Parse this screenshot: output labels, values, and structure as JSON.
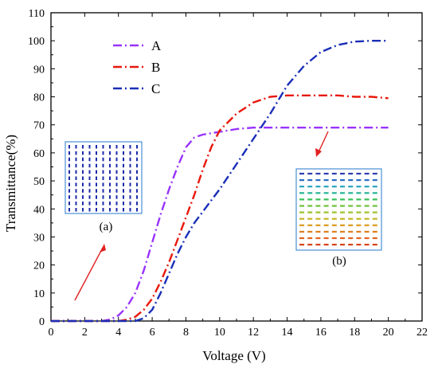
{
  "chart_data": {
    "type": "line",
    "title": "",
    "xlabel": "Voltage (V)",
    "ylabel": "Transmittance(%)",
    "xlim": [
      0,
      22
    ],
    "ylim": [
      0,
      110
    ],
    "x_ticks": [
      0,
      2,
      4,
      6,
      8,
      10,
      12,
      14,
      16,
      18,
      20,
      22
    ],
    "y_ticks": [
      0,
      10,
      20,
      30,
      40,
      50,
      60,
      70,
      80,
      90,
      100,
      110
    ],
    "grid": false,
    "legend_position": "top-left",
    "series": [
      {
        "name": "A",
        "color": "#9933ff",
        "line_style": "dash-dot",
        "points": [
          [
            0,
            0
          ],
          [
            3,
            0
          ],
          [
            3.5,
            0.5
          ],
          [
            4,
            2
          ],
          [
            4.5,
            5
          ],
          [
            5,
            10
          ],
          [
            5.5,
            18
          ],
          [
            6,
            28
          ],
          [
            6.5,
            38
          ],
          [
            7,
            47
          ],
          [
            7.5,
            55
          ],
          [
            8,
            62
          ],
          [
            8.5,
            65.5
          ],
          [
            9,
            66.5
          ],
          [
            10,
            67.5
          ],
          [
            11,
            68.5
          ],
          [
            12,
            69
          ],
          [
            13,
            69
          ],
          [
            14,
            69
          ],
          [
            15,
            69
          ],
          [
            16,
            69
          ],
          [
            17,
            69
          ],
          [
            18,
            69
          ],
          [
            19,
            69
          ],
          [
            20,
            69
          ]
        ]
      },
      {
        "name": "B",
        "color": "#e8180c",
        "line_style": "dash-dot",
        "points": [
          [
            0,
            0
          ],
          [
            4,
            0
          ],
          [
            4.5,
            0.5
          ],
          [
            5,
            1.5
          ],
          [
            5.5,
            4
          ],
          [
            6,
            8
          ],
          [
            6.5,
            14
          ],
          [
            7,
            21
          ],
          [
            7.5,
            29
          ],
          [
            8,
            37
          ],
          [
            8.5,
            45
          ],
          [
            9,
            54
          ],
          [
            9.5,
            62
          ],
          [
            10,
            68
          ],
          [
            11,
            74
          ],
          [
            12,
            78
          ],
          [
            13,
            80
          ],
          [
            14,
            80.5
          ],
          [
            15,
            80.5
          ],
          [
            16,
            80.5
          ],
          [
            17,
            80.5
          ],
          [
            18,
            80
          ],
          [
            19,
            80
          ],
          [
            20,
            79.5
          ]
        ]
      },
      {
        "name": "C",
        "color": "#1a2fb8",
        "line_style": "dash-dot",
        "points": [
          [
            0,
            0
          ],
          [
            5,
            0
          ],
          [
            5.5,
            1
          ],
          [
            6,
            4
          ],
          [
            6.5,
            10
          ],
          [
            7,
            17
          ],
          [
            7.5,
            24
          ],
          [
            8,
            30
          ],
          [
            8.5,
            35
          ],
          [
            9,
            39
          ],
          [
            10,
            47
          ],
          [
            11,
            56
          ],
          [
            12,
            65
          ],
          [
            13,
            74
          ],
          [
            14,
            84
          ],
          [
            15,
            91
          ],
          [
            16,
            96
          ],
          [
            17,
            98.5
          ],
          [
            18,
            99.7
          ],
          [
            19,
            100
          ],
          [
            20,
            100
          ]
        ]
      }
    ],
    "annotations": [
      {
        "label": "(a)",
        "arrow_color": "#e02020"
      },
      {
        "label": "(b)",
        "arrow_color": "#e02020"
      }
    ]
  }
}
